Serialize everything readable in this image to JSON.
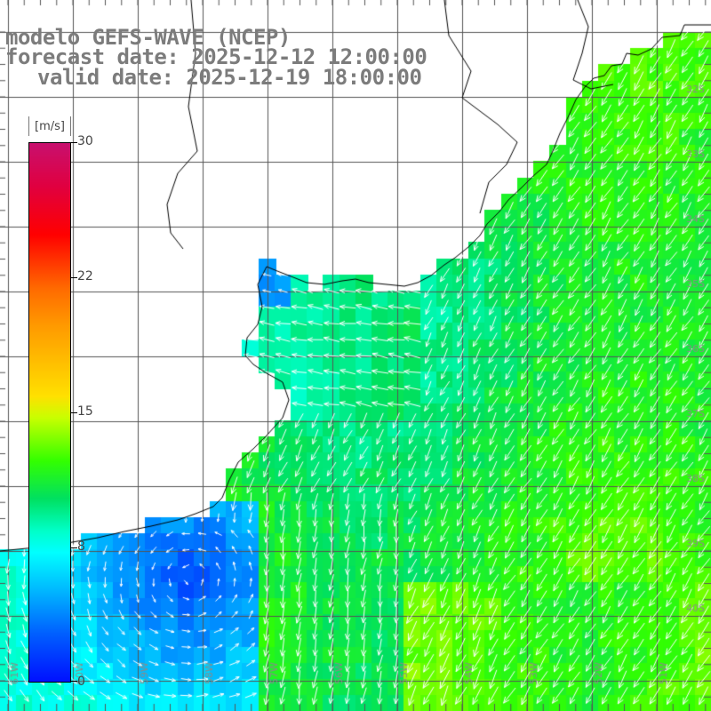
{
  "title": {
    "line1": "modelo GEFS-WAVE (NCEP)",
    "line2": "forecast date: 2025-12-12 12:00:00",
    "line3": "valid date: 2025-12-19 18:00:00"
  },
  "legend": {
    "unit": "[m/s]",
    "ticks": [
      "30",
      "22",
      "15",
      "8",
      "0"
    ],
    "tick_values": [
      30,
      22,
      15,
      8,
      0
    ]
  },
  "grid": {
    "lat_labels": [
      "32S",
      "33S",
      "34S",
      "35S",
      "36S",
      "37S",
      "38S",
      "39S",
      "40S"
    ],
    "lon_labels": [
      "61W",
      "60W",
      "59W",
      "58W",
      "57W",
      "56W",
      "55W",
      "54W",
      "53W",
      "52W",
      "51W"
    ]
  },
  "field": {
    "variable": "wind speed",
    "dominant_direction": "north-northeast wind, arrows pointing south-southwest",
    "offshore_speed_range": [
      10,
      14
    ],
    "nearshore_speed_range": [
      7,
      9
    ],
    "southwest_low_speed_range": [
      1,
      6
    ]
  },
  "colors": {
    "land": "#ffffff",
    "coastline": "#000000",
    "gridline": "#555555",
    "arrow": "#ffffff",
    "title": "#7c7c7c"
  }
}
